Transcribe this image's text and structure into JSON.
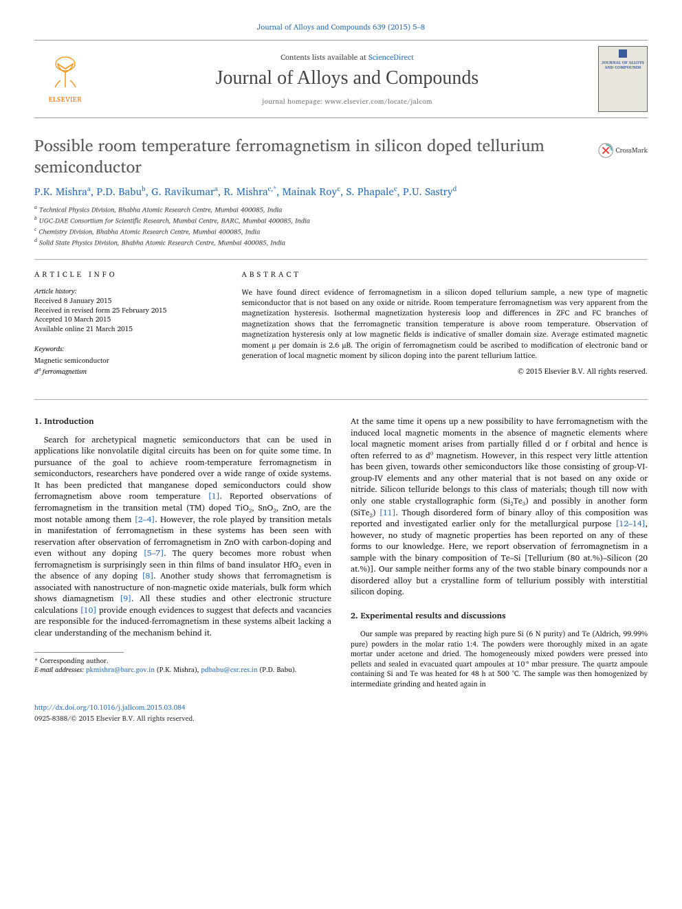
{
  "top_citation": "Journal of Alloys and Compounds 639 (2015) 5–8",
  "masthead": {
    "contents_prefix": "Contents lists available at ",
    "contents_link": "ScienceDirect",
    "journal_title": "Journal of Alloys and Compounds",
    "homepage": "journal homepage: www.elsevier.com/locate/jalcom",
    "publisher": "ELSEVIER",
    "cover_title": "JOURNAL OF ALLOYS AND COMPOUNDS"
  },
  "article": {
    "title": "Possible room temperature ferromagnetism in silicon doped tellurium semiconductor",
    "crossmark_label": "CrossMark"
  },
  "authors": [
    {
      "name": "P.K. Mishra",
      "aff": "a"
    },
    {
      "name": "P.D. Babu",
      "aff": "b"
    },
    {
      "name": "G. Ravikumar",
      "aff": "a"
    },
    {
      "name": "R. Mishra",
      "aff": "c,*"
    },
    {
      "name": "Mainak Roy",
      "aff": "c"
    },
    {
      "name": "S. Phapale",
      "aff": "c"
    },
    {
      "name": "P.U. Sastry",
      "aff": "d"
    }
  ],
  "affiliations": [
    {
      "key": "a",
      "text": "Technical Physics Division, Bhabha Atomic Research Centre, Mumbai 400085, India"
    },
    {
      "key": "b",
      "text": "UGC-DAE Consortium for Scientific Research, Mumbai Centre, BARC, Mumbai 400085, India"
    },
    {
      "key": "c",
      "text": "Chemistry Division, Bhabha Atomic Research Centre, Mumbai 400085, India"
    },
    {
      "key": "d",
      "text": "Solid State Physics Division, Bhabha Atomic Research Centre, Mumbai 400085, India"
    }
  ],
  "article_info": {
    "heading": "ARTICLE INFO",
    "history_label": "Article history:",
    "received": "Received 8 January 2015",
    "revised": "Received in revised form 25 February 2015",
    "accepted": "Accepted 10 March 2015",
    "online": "Available online 21 March 2015",
    "keywords_label": "Keywords:",
    "kw1": "Magnetic semiconductor",
    "kw2": "d⁰ ferromagnetism"
  },
  "abstract": {
    "heading": "ABSTRACT",
    "text": "We have found direct evidence of ferromagnetism in a silicon doped tellurium sample, a new type of magnetic semiconductor that is not based on any oxide or nitride. Room temperature ferromagnetism was very apparent from the magnetization hysteresis. Isothermal magnetization hysteresis loop and differences in ZFC and FC branches of magnetization shows that the ferromagnetic transition temperature is above room temperature. Observation of magnetization hysteresis only at low magnetic fields is indicative of smaller domain size. Average estimated magnetic moment μ per domain is 2.6 μB. The origin of ferromagnetism could be ascribed to modification of electronic band or generation of local magnetic moment by silicon doping into the parent tellurium lattice.",
    "copyright": "© 2015 Elsevier B.V. All rights reserved."
  },
  "sections": {
    "intro_heading": "1. Introduction",
    "intro_p1a": "Search for archetypical magnetic semiconductors that can be used in applications like nonvolatile digital circuits has been on for quite some time. In pursuance of the goal to achieve room-temperature ferromagnetism in semiconductors, researchers have pondered over a wide range of oxide systems. It has been predicted that manganese doped semiconductors could show ferromagnetism above room temperature ",
    "ref1": "[1]",
    "intro_p1b": ". Reported observations of ferromagnetism in the transition metal (TM) doped TiO₂, SnO₂, ZnO, are the most notable among them ",
    "ref2_4": "[2–4]",
    "intro_p1c": ". However, the role played by transition metals in manifestation of ferromagnetism in these systems has been seen with reservation after observation of ferromagnetism in ZnO with carbon-doping and even without any doping ",
    "ref5_7": "[5–7]",
    "intro_p1d": ". The query becomes more robust when ferromagnetism is surprisingly seen in thin films of band insulator HfO₂ even in the absence of any doping ",
    "ref8": "[8]",
    "intro_p1e": ". Another study shows that ferromagnetism is associated with nanostructure of non-magnetic oxide materials, bulk form which shows diamagnetism ",
    "ref9": "[9]",
    "intro_p1f": ". All these studies and other electronic structure calculations ",
    "ref10": "[10]",
    "intro_p1g": " provide enough evidences to suggest that defects and vacancies are responsible for the induced-ferromagnetism in these systems albeit lacking a clear understanding of the mechanism behind it.",
    "intro_p2a": "At the same time it opens up a new possibility to have ferromagnetism with the induced local magnetic moments in the absence of magnetic elements where local magnetic moment arises from partially filled d or f orbital and hence is often referred to as d⁰ magnetism. However, in this respect very little attention has been given, towards other semiconductors like those consisting of group-VI-group-IV elements and any other material that is not based on any oxide or nitride. Silicon telluride belongs to this class of materials; though till now with only one stable crystallographic form (Si₂Te₃) and possibly in another form (SiTe₂) ",
    "ref11": "[11]",
    "intro_p2b": ". Though disordered form of binary alloy of this composition was reported and investigated earlier only for the metallurgical purpose ",
    "ref12_14": "[12–14]",
    "intro_p2c": ", however, no study of magnetic properties has been reported on any of these forms to our knowledge. Here, we report observation of ferromagnetism in a sample with the binary composition of Te–Si [Tellurium (80 at.%)–Silicon (20 at.%)]. Our sample neither forms any of the two stable binary compounds nor a disordered alloy but a crystalline form of tellurium possibly with interstitial silicon doping.",
    "exp_heading": "2. Experimental results and discussions",
    "exp_p1": "Our sample was prepared by reacting high pure Si (6 N purity) and Te (Aldrich, 99.99% pure) powders in the molar ratio 1:4. The powders were thoroughly mixed in an agate mortar under acetone and dried. The homogeneously mixed powders were pressed into pellets and sealed in evacuated quart ampoules at 10⁻⁶ mbar pressure. The quartz ampoule containing Si and Te was heated for 48 h at 500 °C. The sample was then homogenized by intermediate grinding and heated again in"
  },
  "footer": {
    "corresponding_label": "* Corresponding author.",
    "email_label": "E-mail addresses: ",
    "email1": "pkmishra@barc.gov.in",
    "email1_who": " (P.K. Mishra), ",
    "email2": "pdbabu@csr.res.in",
    "email2_who": " (P.D. Babu).",
    "doi": "http://dx.doi.org/10.1016/j.jallcom.2015.03.084",
    "issn_copyright": "0925-8388/© 2015 Elsevier B.V. All rights reserved."
  },
  "colors": {
    "link": "#2b6eb5",
    "accent_orange": "#ff6b00",
    "title_gray": "#5a5a5a",
    "rule": "#aaaaaa"
  }
}
